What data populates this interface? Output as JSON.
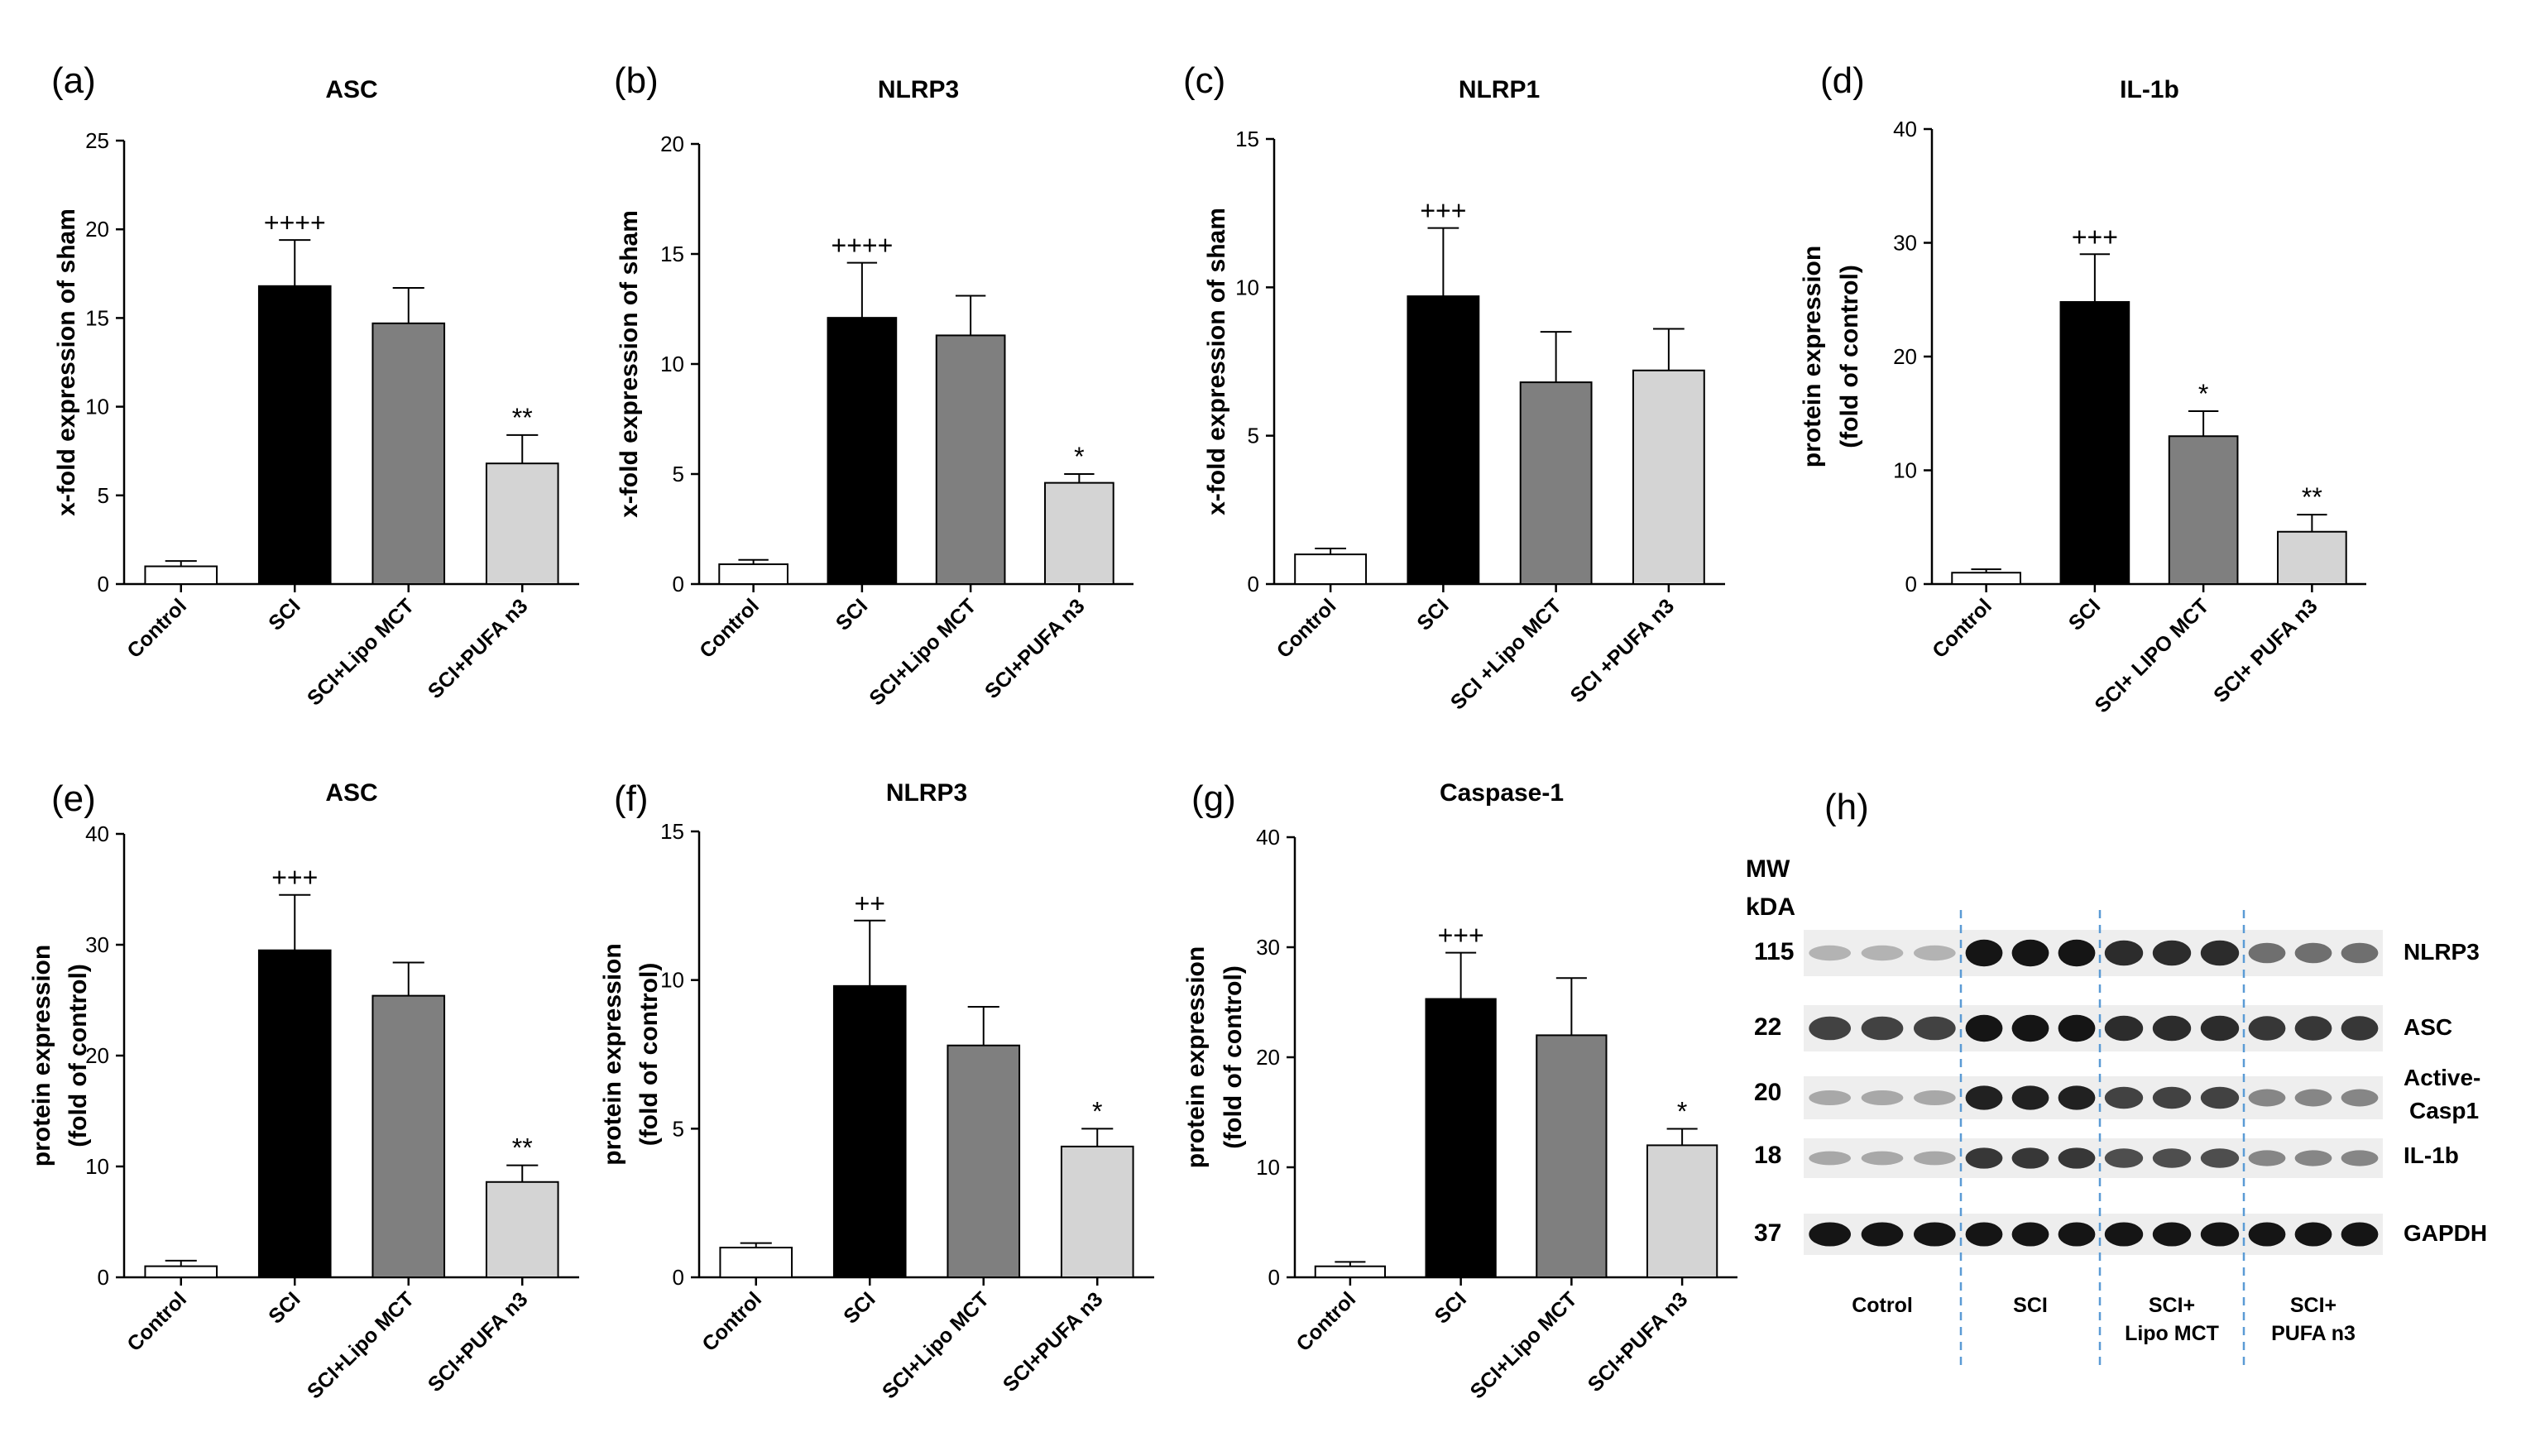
{
  "chart_data": [
    {
      "panel": "(a)",
      "type": "bar",
      "title": "ASC",
      "ylabel": "x-fold expression of sham",
      "ylim": [
        0,
        25
      ],
      "yticks": [
        0,
        5,
        10,
        15,
        20,
        25
      ],
      "categories": [
        "Control",
        "SCI",
        "SCI+Lipo MCT",
        "SCI+PUFA n3"
      ],
      "values": [
        1.0,
        16.8,
        14.7,
        6.8
      ],
      "errors": [
        0.3,
        2.6,
        2.0,
        1.6
      ],
      "colors": [
        "#ffffff",
        "#000000",
        "#7f7f7f",
        "#d4d4d4"
      ],
      "annotations": [
        "",
        "++++",
        "",
        "**"
      ]
    },
    {
      "panel": "(b)",
      "type": "bar",
      "title": "NLRP3",
      "ylabel": "x-fold expression of sham",
      "ylim": [
        0,
        20
      ],
      "yticks": [
        0,
        5,
        10,
        15,
        20
      ],
      "categories": [
        "Control",
        "SCI",
        "SCI+Lipo MCT",
        "SCI+PUFA n3"
      ],
      "values": [
        0.9,
        12.1,
        11.3,
        4.6
      ],
      "errors": [
        0.2,
        2.5,
        1.8,
        0.4
      ],
      "colors": [
        "#ffffff",
        "#000000",
        "#7f7f7f",
        "#d4d4d4"
      ],
      "annotations": [
        "",
        "++++",
        "",
        "*"
      ]
    },
    {
      "panel": "(c)",
      "type": "bar",
      "title": "NLRP1",
      "ylabel": "x-fold expression of sham",
      "ylim": [
        0,
        15
      ],
      "yticks": [
        0,
        5,
        10,
        15
      ],
      "categories": [
        "Control",
        "SCI",
        "SCI +Lipo MCT",
        "SCI +PUFA n3"
      ],
      "values": [
        1.0,
        9.7,
        6.8,
        7.2
      ],
      "errors": [
        0.2,
        2.3,
        1.7,
        1.4
      ],
      "colors": [
        "#ffffff",
        "#000000",
        "#7f7f7f",
        "#d4d4d4"
      ],
      "annotations": [
        "",
        "+++",
        "",
        ""
      ]
    },
    {
      "panel": "(d)",
      "type": "bar",
      "title": "IL-1b",
      "ylabel": "protein expression",
      "ylabel2": "(fold of control)",
      "ylim": [
        0,
        40
      ],
      "yticks": [
        0,
        10,
        20,
        30,
        40
      ],
      "categories": [
        "Control",
        "SCI",
        "SCI+ LIPO MCT",
        "SCI+ PUFA n3"
      ],
      "values": [
        1.0,
        24.8,
        13.0,
        4.6
      ],
      "errors": [
        0.3,
        4.2,
        2.2,
        1.5
      ],
      "colors": [
        "#ffffff",
        "#000000",
        "#7f7f7f",
        "#d4d4d4"
      ],
      "annotations": [
        "",
        "+++",
        "*",
        "**"
      ]
    },
    {
      "panel": "(e)",
      "type": "bar",
      "title": "ASC",
      "ylabel": "protein expression",
      "ylabel2": "(fold of control)",
      "ylim": [
        0,
        40
      ],
      "yticks": [
        0,
        10,
        20,
        30,
        40
      ],
      "categories": [
        "Control",
        "SCI",
        "SCI+Lipo MCT",
        "SCI+PUFA n3"
      ],
      "values": [
        1.0,
        29.5,
        25.4,
        8.6
      ],
      "errors": [
        0.5,
        5.0,
        3.0,
        1.5
      ],
      "colors": [
        "#ffffff",
        "#000000",
        "#7f7f7f",
        "#d4d4d4"
      ],
      "annotations": [
        "",
        "+++",
        "",
        "**"
      ]
    },
    {
      "panel": "(f)",
      "type": "bar",
      "title": "NLRP3",
      "ylabel": "protein expression",
      "ylabel2": "(fold of control)",
      "ylim": [
        0,
        15
      ],
      "yticks": [
        0,
        5,
        10,
        15
      ],
      "categories": [
        "Control",
        "SCI",
        "SCI+Lipo MCT",
        "SCI+PUFA n3"
      ],
      "values": [
        1.0,
        9.8,
        7.8,
        4.4
      ],
      "errors": [
        0.15,
        2.2,
        1.3,
        0.6
      ],
      "colors": [
        "#ffffff",
        "#000000",
        "#7f7f7f",
        "#d4d4d4"
      ],
      "annotations": [
        "",
        "++",
        "",
        "*"
      ]
    },
    {
      "panel": "(g)",
      "type": "bar",
      "title": "Caspase-1",
      "ylabel": "protein expression",
      "ylabel2": "(fold of control)",
      "ylim": [
        0,
        40
      ],
      "yticks": [
        0,
        10,
        20,
        30,
        40
      ],
      "categories": [
        "Control",
        "SCI",
        "SCI+Lipo MCT",
        "SCI+PUFA n3"
      ],
      "values": [
        1.0,
        25.3,
        22.0,
        12.0
      ],
      "errors": [
        0.4,
        4.2,
        5.2,
        1.5
      ],
      "colors": [
        "#ffffff",
        "#000000",
        "#7f7f7f",
        "#d4d4d4"
      ],
      "annotations": [
        "",
        "+++",
        "",
        "*"
      ]
    }
  ],
  "western_blot": {
    "panel": "(h)",
    "mw_header": [
      "MW",
      "kDA"
    ],
    "rows": [
      {
        "mw": "115",
        "label": "NLRP3"
      },
      {
        "mw": "22",
        "label": "ASC"
      },
      {
        "mw": "20",
        "label": "Active-",
        "label2": "Casp1"
      },
      {
        "mw": "18",
        "label": "IL-1b"
      },
      {
        "mw": "37",
        "label": "GAPDH"
      }
    ],
    "groups": [
      {
        "label": "Cotrol"
      },
      {
        "label": "SCI"
      },
      {
        "label": "SCI+",
        "label2": "Lipo MCT"
      },
      {
        "label": "SCI+",
        "label2": "PUFA n3"
      }
    ],
    "band_intensity": [
      [
        0.25,
        0.95,
        0.85,
        0.55
      ],
      [
        0.75,
        0.95,
        0.85,
        0.8
      ],
      [
        0.3,
        0.9,
        0.75,
        0.45
      ],
      [
        0.3,
        0.8,
        0.7,
        0.45
      ],
      [
        0.95,
        0.95,
        0.95,
        0.95
      ]
    ]
  }
}
